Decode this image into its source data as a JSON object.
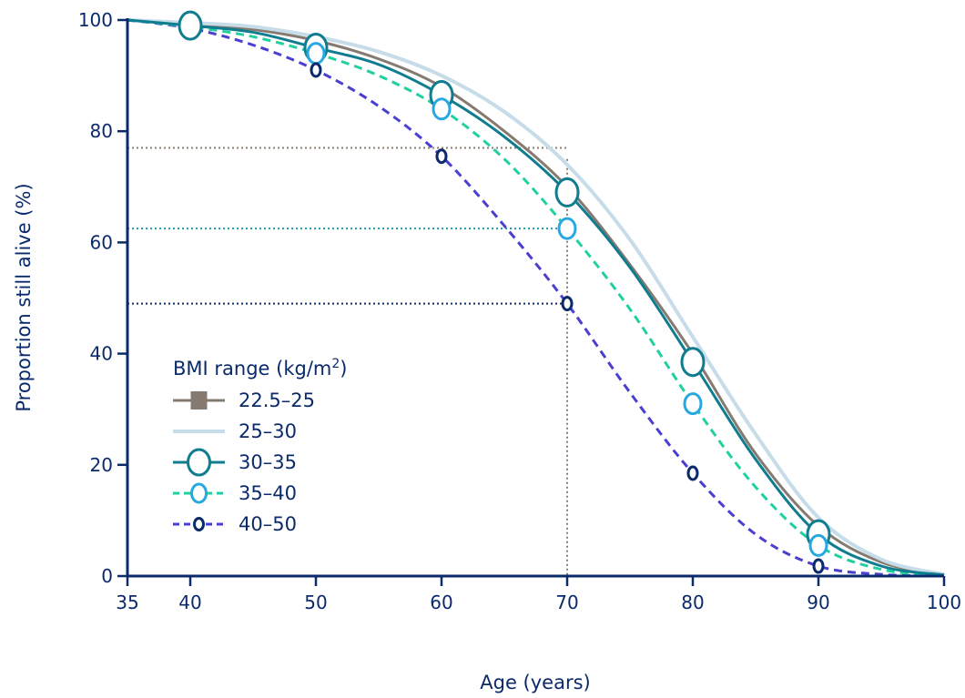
{
  "chart_data": {
    "type": "line",
    "title": "",
    "xlabel": "Age (years)",
    "ylabel": "Proportion still alive (%)",
    "xlim": [
      35,
      100
    ],
    "ylim": [
      0,
      100
    ],
    "x_ticks": [
      35,
      40,
      50,
      60,
      70,
      80,
      90,
      100
    ],
    "y_ticks": [
      0,
      20,
      40,
      60,
      80,
      100
    ],
    "grid": false,
    "legend": {
      "title": "BMI range (kg/m",
      "title_sup": "2",
      "title_end": ")",
      "placement": "middle-left"
    },
    "x": [
      35,
      40,
      45,
      50,
      55,
      60,
      65,
      70,
      75,
      80,
      85,
      90,
      95,
      100
    ],
    "series": [
      {
        "name": "22.5–25",
        "color": "#857a70",
        "style": "solid",
        "marker": "square",
        "values": [
          100,
          99.3,
          98.3,
          96.3,
          93,
          88,
          80,
          70,
          56,
          40,
          22,
          9,
          2.5,
          0.2
        ],
        "marker_x": []
      },
      {
        "name": "25–30",
        "color": "#c6dde9",
        "style": "solid",
        "marker": "none",
        "values": [
          100,
          99.5,
          98.8,
          97,
          94.3,
          90,
          83.5,
          74,
          60.5,
          43,
          25.5,
          10.5,
          3,
          0.3
        ],
        "marker_x": []
      },
      {
        "name": "30–35",
        "color": "#0f7d8f",
        "style": "solid",
        "marker": "large-circle",
        "values": [
          100,
          99,
          97.8,
          95,
          92,
          86.5,
          79,
          69,
          55.5,
          38.5,
          21,
          7.5,
          1.8,
          0.2
        ],
        "marker_x": [
          40,
          50,
          60,
          70,
          80,
          90
        ]
      },
      {
        "name": "35–40",
        "color": "#20d0a0",
        "style": "dashed",
        "marker": "circle",
        "marker_color": "#28a8e0",
        "values": [
          100,
          98.8,
          97,
          94,
          90,
          84,
          75,
          62.5,
          48,
          31,
          16,
          5.5,
          1.2,
          0.1
        ],
        "marker_x": [
          50,
          60,
          70,
          80,
          90
        ]
      },
      {
        "name": "40–50",
        "color": "#4a3fcf",
        "style": "dashed",
        "marker": "small-circle",
        "marker_color": "#0b2a6b",
        "values": [
          100,
          98.5,
          95.5,
          91,
          84.5,
          75.5,
          63,
          49,
          33,
          18.5,
          7.5,
          1.8,
          0.3,
          0
        ],
        "marker_x": [
          50,
          60,
          70,
          80,
          90
        ]
      }
    ],
    "reference_lines": [
      {
        "type": "vertical",
        "x": 70,
        "y_to": 75,
        "color": "#8a7d70"
      },
      {
        "type": "horizontal",
        "y": 77,
        "x_to": 70,
        "color": "#8a7d70"
      },
      {
        "type": "horizontal",
        "y": 62.5,
        "x_to": 70,
        "color": "#1a9aa8"
      },
      {
        "type": "horizontal",
        "y": 49,
        "x_to": 70,
        "color": "#0b2a6b"
      }
    ],
    "axis_color": "#0b2a6b"
  }
}
